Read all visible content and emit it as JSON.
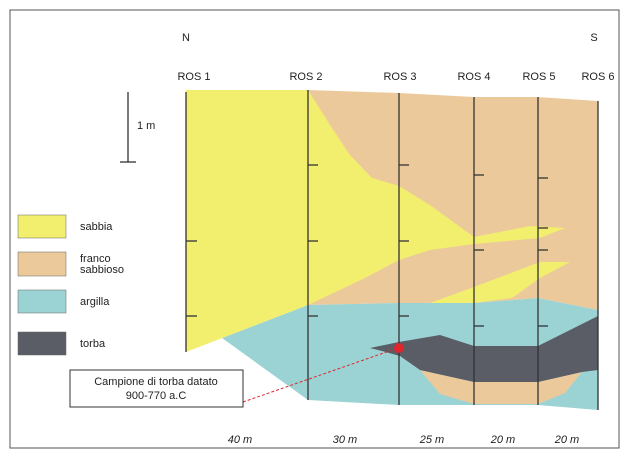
{
  "compass": {
    "north": "N",
    "south": "S"
  },
  "profiles": [
    "ROS 1",
    "ROS 2",
    "ROS 3",
    "ROS 4",
    "ROS 5",
    "ROS 6"
  ],
  "scale": "1 m",
  "legend": [
    {
      "lines": [
        "sabbia"
      ],
      "color": "#f2ee6e"
    },
    {
      "lines": [
        "franco",
        "sabbioso"
      ],
      "color": "#ecc99a"
    },
    {
      "lines": [
        "argilla"
      ],
      "color": "#9bd3d4"
    },
    {
      "lines": [
        "torba"
      ],
      "color": "#5a5c66"
    }
  ],
  "annotation": {
    "lines": [
      "Campione di torba datato",
      "900-770 a.C"
    ]
  },
  "distances": [
    "40 m",
    "30 m",
    "25 m",
    "20 m",
    "20 m"
  ]
}
